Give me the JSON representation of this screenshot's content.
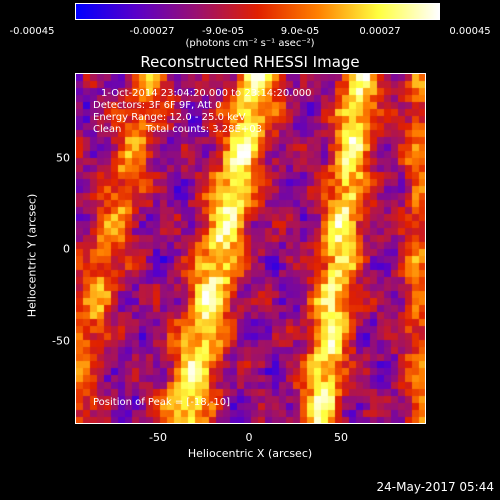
{
  "colorbar": {
    "ticks": [
      "-0.00045",
      "-0.00027",
      "-9.0e-05",
      "9.0e-05",
      "0.00027",
      "0.00045"
    ],
    "units": "(photons cm⁻² s⁻¹ asec⁻²)",
    "min": -0.00045,
    "max": 0.00045,
    "colors": [
      "#0000ff",
      "#5a00c8",
      "#9a1070",
      "#e02000",
      "#ff8000",
      "#ffff40",
      "#ffffff"
    ]
  },
  "image": {
    "title": "Reconstructed RHESSI Image",
    "annotation": {
      "line1": "1-Oct-2014 23:04:20.000 to 23:14:20.000",
      "line2": "Detectors: 3F 6F 9F, Att 0",
      "line3": "Energy Range: 12.0 - 25.0 keV",
      "line4_a": "Clean",
      "line4_b": "Total counts: 3.28E+03"
    },
    "peak_label": "Position of Peak = [-18,-10]"
  },
  "axes": {
    "xlabel": "Heliocentric X (arcsec)",
    "ylabel": "Heliocentric Y (arcsec)",
    "xticks": [
      "-50",
      "0",
      "50"
    ],
    "yticks": [
      "50",
      "0",
      "-50"
    ],
    "xrange": [
      -95,
      95
    ],
    "yrange": [
      -95,
      95
    ]
  },
  "footer": {
    "timestamp": "24-May-2017 05:44"
  }
}
